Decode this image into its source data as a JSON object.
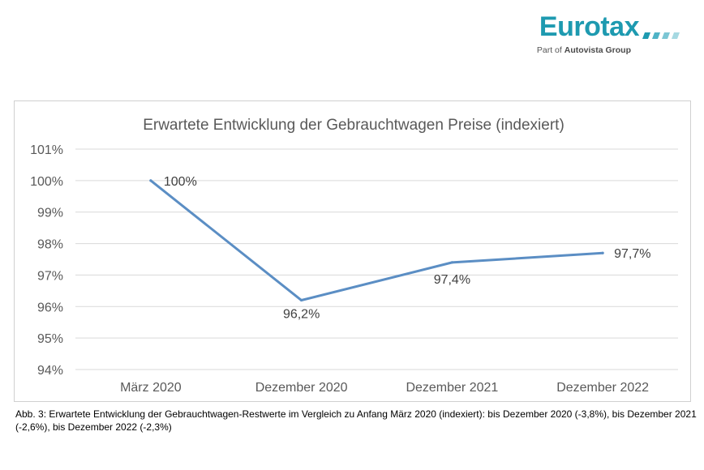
{
  "logo": {
    "brand": "Eurotax",
    "tagline_prefix": "Part of",
    "tagline_strong": "Autovista Group",
    "colors": {
      "brand": "#1e9ab0",
      "dots": "#8fd0dc"
    }
  },
  "chart_data": {
    "type": "line",
    "title": "Erwartete Entwicklung der Gebrauchtwagen Preise  (indexiert)",
    "xlabel": "",
    "ylabel": "",
    "categories": [
      "März 2020",
      "Dezember 2020",
      "Dezember 2021",
      "Dezember 2022"
    ],
    "series": [
      {
        "values": [
          100,
          96.2,
          97.4,
          97.7
        ],
        "data_labels": [
          "100%",
          "96,2%",
          "97,4%",
          "97,7%"
        ],
        "color": "#5b8ec4"
      }
    ],
    "ylim": [
      94,
      101
    ],
    "y_ticks": [
      {
        "value": 101,
        "label": "101%"
      },
      {
        "value": 100,
        "label": "100%"
      },
      {
        "value": 99,
        "label": "99%"
      },
      {
        "value": 98,
        "label": "98%"
      },
      {
        "value": 97,
        "label": "97%"
      },
      {
        "value": 96,
        "label": "96%"
      },
      {
        "value": 95,
        "label": "95%"
      },
      {
        "value": 94,
        "label": "94%"
      }
    ],
    "grid": true,
    "legend": "none"
  },
  "caption": "Abb. 3: Erwartete Entwicklung der Gebrauchtwagen-Restwerte im Vergleich zu Anfang März 2020 (indexiert): bis Dezember 2020 (-3,8%), bis Dezember 2021 (-2,6%), bis Dezember 2022 (-2,3%)"
}
